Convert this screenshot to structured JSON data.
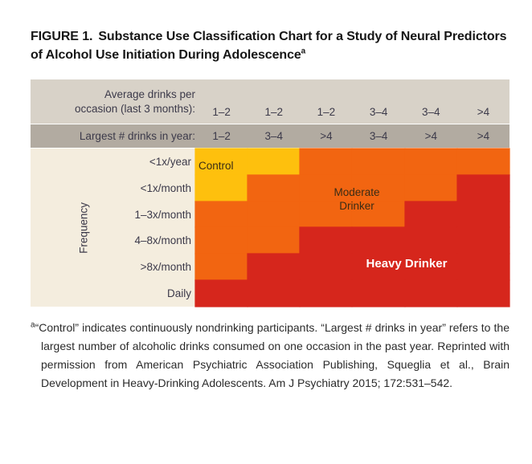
{
  "title": {
    "figure_label": "FIGURE 1.",
    "text": "Substance Use Classification Chart for a Study of Neural Predictors of Alcohol Use Initiation During Adolescence",
    "superscript": "a"
  },
  "table": {
    "col_header_row1": {
      "label_line1": "Average drinks per",
      "label_line2": "occasion (last 3 months):",
      "ticks": [
        "1–2",
        "1–2",
        "1–2",
        "3–4",
        "3–4",
        ">4"
      ]
    },
    "col_header_row2": {
      "label": "Largest # drinks in year:",
      "ticks": [
        "1–2",
        "3–4",
        ">4",
        "3–4",
        ">4",
        ">4"
      ]
    },
    "regions": {
      "control": "Control",
      "moderate_line1": "Moderate",
      "moderate_line2": "Drinker",
      "heavy": "Heavy Drinker"
    }
  },
  "colors": {
    "header_row1_bg": "#d8d2c8",
    "header_row2_bg": "#b2aba1",
    "label_col_bg": "#f4edde",
    "control_yellow": "#fec00d",
    "moderate_orange": "#f26511",
    "heavy_red": "#d6261c",
    "axis_text": "#3c3a4a",
    "heavy_label_text": "#ffffff"
  },
  "footnote": {
    "marker": "a",
    "text": "“Control” indicates continuously nondrinking participants. “Largest # drinks in year” refers to the largest number of alcoholic drinks consumed on one occasion in the past year. Reprinted with permission from American Psychiatric Association Publishing, Squeglia et al., Brain Development in Heavy-Drinking Adolescents. Am J Psychiatry 2015; 172:531–542."
  },
  "chart_data": {
    "type": "heatmap",
    "title": "Substance Use Classification Chart for a Study of Neural Predictors of Alcohol Use Initiation During Adolescence",
    "x_axis": {
      "header_row1_label": "Average drinks per occasion (last 3 months):",
      "header_row1_ticks": [
        "1–2",
        "1–2",
        "1–2",
        "3–4",
        "3–4",
        ">4"
      ],
      "header_row2_label": "Largest # drinks in year:",
      "header_row2_ticks": [
        "1–2",
        "3–4",
        ">4",
        "3–4",
        ">4",
        ">4"
      ]
    },
    "y_axis": {
      "label": "Frequency",
      "ticks": [
        "<1x/year",
        "<1x/month",
        "1–3x/month",
        "4–8x/month",
        ">8x/month",
        "Daily"
      ]
    },
    "categories": [
      {
        "id": "control",
        "label": "Control",
        "color": "#fec00d"
      },
      {
        "id": "moderate",
        "label": "Moderate Drinker",
        "color": "#f26511"
      },
      {
        "id": "heavy",
        "label": "Heavy Drinker",
        "color": "#d6261c"
      }
    ],
    "matrix": [
      [
        "control",
        "control",
        "moderate",
        "moderate",
        "moderate",
        "moderate"
      ],
      [
        "control",
        "moderate",
        "moderate",
        "moderate",
        "moderate",
        "heavy"
      ],
      [
        "moderate",
        "moderate",
        "moderate",
        "moderate",
        "heavy",
        "heavy"
      ],
      [
        "moderate",
        "moderate",
        "heavy",
        "heavy",
        "heavy",
        "heavy"
      ],
      [
        "moderate",
        "heavy",
        "heavy",
        "heavy",
        "heavy",
        "heavy"
      ],
      [
        "heavy",
        "heavy",
        "heavy",
        "heavy",
        "heavy",
        "heavy"
      ]
    ],
    "legend_position": "none",
    "grid": false
  }
}
